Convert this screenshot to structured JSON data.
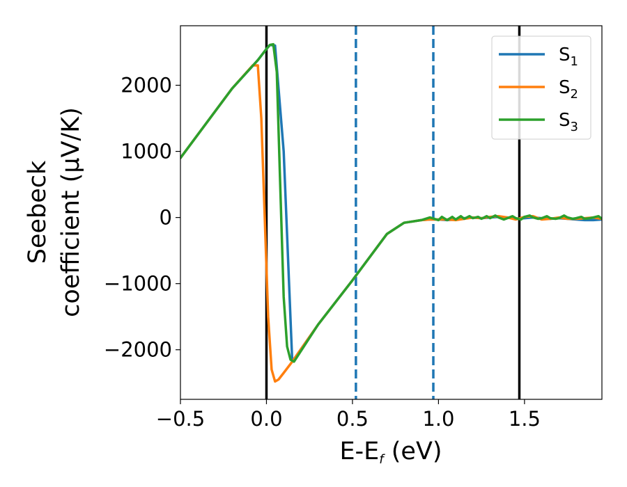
{
  "chart_data": {
    "type": "line",
    "xlabel_parts": {
      "base": "E-E",
      "sub": "f",
      "rest": " (eV)"
    },
    "ylabel_lines": [
      "Seebeck",
      "coefficient  (μV/K)"
    ],
    "xlim": [
      -0.5,
      1.95
    ],
    "ylim": [
      -2750,
      2900
    ],
    "xticks": [
      -0.5,
      0.0,
      0.5,
      1.0,
      1.5
    ],
    "xtick_labels": [
      "−0.5",
      "0.0",
      "0.5",
      "1.0",
      "1.5"
    ],
    "yticks": [
      -2000,
      -1000,
      0,
      1000,
      2000
    ],
    "ytick_labels": [
      "−2000",
      "−1000",
      "0",
      "1000",
      "2000"
    ],
    "grid": false,
    "legend_position": "top-right",
    "vlines": [
      {
        "x": 0.0,
        "style": "solid",
        "color": "#000000"
      },
      {
        "x": 1.47,
        "style": "solid",
        "color": "#000000"
      },
      {
        "x": 0.52,
        "style": "dashed",
        "color": "#1f77b4"
      },
      {
        "x": 0.97,
        "style": "dashed",
        "color": "#1f77b4"
      }
    ],
    "series": [
      {
        "name": "S1",
        "label_base": "S",
        "label_sub": "1",
        "color": "#1f77b4",
        "x": [
          -0.5,
          -0.2,
          -0.05,
          0.0,
          0.02,
          0.05,
          0.1,
          0.15,
          0.3,
          0.5,
          0.7,
          0.8,
          0.85,
          0.9,
          0.95,
          1.0,
          1.05,
          1.1,
          1.15,
          1.2,
          1.25,
          1.3,
          1.35,
          1.4,
          1.45,
          1.5,
          1.55,
          1.6,
          1.65,
          1.7,
          1.75,
          1.8,
          1.85,
          1.9,
          1.95
        ],
        "y": [
          900,
          1950,
          2380,
          2550,
          2610,
          2600,
          1000,
          -2180,
          -1620,
          -950,
          -250,
          -80,
          -60,
          -40,
          -30,
          -30,
          -40,
          -30,
          -10,
          0,
          -10,
          0,
          10,
          0,
          -20,
          -10,
          0,
          -10,
          -20,
          -10,
          -20,
          -30,
          -40,
          -40,
          -30
        ]
      },
      {
        "name": "S2",
        "label_base": "S",
        "label_sub": "2",
        "color": "#ff7f0e",
        "x": [
          -0.5,
          -0.2,
          -0.08,
          -0.05,
          -0.03,
          -0.01,
          0.01,
          0.03,
          0.05,
          0.07,
          0.1,
          0.15,
          0.3,
          0.5,
          0.7,
          0.8,
          0.85,
          0.9,
          0.95,
          1.0,
          1.05,
          1.1,
          1.15,
          1.2,
          1.25,
          1.3,
          1.35,
          1.4,
          1.45,
          1.5,
          1.55,
          1.6,
          1.65,
          1.7,
          1.75,
          1.8,
          1.85,
          1.9,
          1.95
        ],
        "y": [
          900,
          1950,
          2300,
          2300,
          1500,
          0,
          -1500,
          -2300,
          -2480,
          -2450,
          -2350,
          -2180,
          -1620,
          -950,
          -250,
          -80,
          -60,
          -40,
          -30,
          -30,
          -30,
          -40,
          -20,
          0,
          -10,
          10,
          20,
          0,
          -30,
          10,
          20,
          -30,
          -20,
          0,
          -20,
          -20,
          -10,
          0,
          -20
        ]
      },
      {
        "name": "S3",
        "label_base": "S",
        "label_sub": "3",
        "color": "#2ca02c",
        "x": [
          -0.5,
          -0.2,
          -0.05,
          0.0,
          0.02,
          0.04,
          0.06,
          0.08,
          0.1,
          0.12,
          0.14,
          0.16,
          0.3,
          0.5,
          0.7,
          0.8,
          0.85,
          0.9,
          0.95,
          1.0,
          1.02,
          1.05,
          1.08,
          1.1,
          1.13,
          1.15,
          1.18,
          1.2,
          1.23,
          1.25,
          1.28,
          1.3,
          1.33,
          1.35,
          1.38,
          1.4,
          1.43,
          1.45,
          1.48,
          1.5,
          1.53,
          1.55,
          1.58,
          1.6,
          1.63,
          1.65,
          1.68,
          1.7,
          1.73,
          1.75,
          1.78,
          1.8,
          1.83,
          1.85,
          1.88,
          1.9,
          1.93,
          1.95
        ],
        "y": [
          900,
          1950,
          2380,
          2550,
          2610,
          2620,
          2200,
          500,
          -1200,
          -1950,
          -2150,
          -2180,
          -1620,
          -950,
          -250,
          -80,
          -60,
          -40,
          0,
          -40,
          10,
          -40,
          10,
          -30,
          20,
          -20,
          20,
          -10,
          10,
          -20,
          20,
          -10,
          30,
          0,
          -30,
          -10,
          20,
          -10,
          -30,
          10,
          30,
          0,
          -20,
          -10,
          20,
          -10,
          -20,
          -10,
          30,
          0,
          -20,
          -10,
          10,
          -20,
          -10,
          0,
          20,
          -20
        ]
      }
    ]
  }
}
